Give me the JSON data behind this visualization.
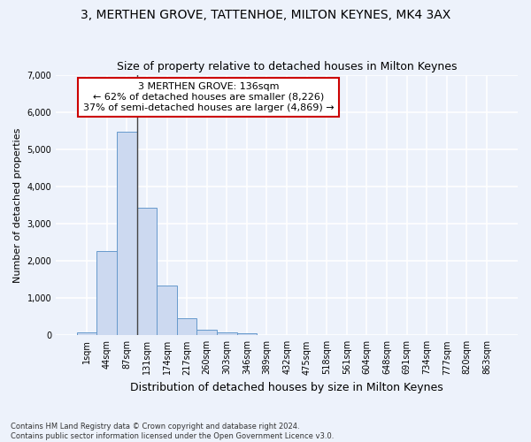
{
  "title": "3, MERTHEN GROVE, TATTENHOE, MILTON KEYNES, MK4 3AX",
  "subtitle": "Size of property relative to detached houses in Milton Keynes",
  "xlabel": "Distribution of detached houses by size in Milton Keynes",
  "ylabel": "Number of detached properties",
  "footnote1": "Contains HM Land Registry data © Crown copyright and database right 2024.",
  "footnote2": "Contains public sector information licensed under the Open Government Licence v3.0.",
  "bar_labels": [
    "1sqm",
    "44sqm",
    "87sqm",
    "131sqm",
    "174sqm",
    "217sqm",
    "260sqm",
    "303sqm",
    "346sqm",
    "389sqm",
    "432sqm",
    "475sqm",
    "518sqm",
    "561sqm",
    "604sqm",
    "648sqm",
    "691sqm",
    "734sqm",
    "777sqm",
    "820sqm",
    "863sqm"
  ],
  "bar_values": [
    80,
    2270,
    5470,
    3420,
    1330,
    460,
    160,
    85,
    50,
    0,
    0,
    0,
    0,
    0,
    0,
    0,
    0,
    0,
    0,
    0,
    0
  ],
  "bar_color": "#ccd9f0",
  "bar_edge_color": "#6699cc",
  "annotation_text_line1": "3 MERTHEN GROVE: 136sqm",
  "annotation_text_line2": "← 62% of detached houses are smaller (8,226)",
  "annotation_text_line3": "37% of semi-detached houses are larger (4,869) →",
  "annotation_box_facecolor": "white",
  "annotation_box_edgecolor": "#cc0000",
  "vline_color": "#444444",
  "vline_x": 2.5,
  "ylim": [
    0,
    7000
  ],
  "yticks": [
    0,
    1000,
    2000,
    3000,
    4000,
    5000,
    6000,
    7000
  ],
  "background_color": "#edf2fb",
  "plot_background": "#edf2fb",
  "grid_color": "white",
  "title_fontsize": 10,
  "subtitle_fontsize": 9,
  "xlabel_fontsize": 9,
  "ylabel_fontsize": 8,
  "tick_fontsize": 7,
  "annotation_fontsize": 8
}
